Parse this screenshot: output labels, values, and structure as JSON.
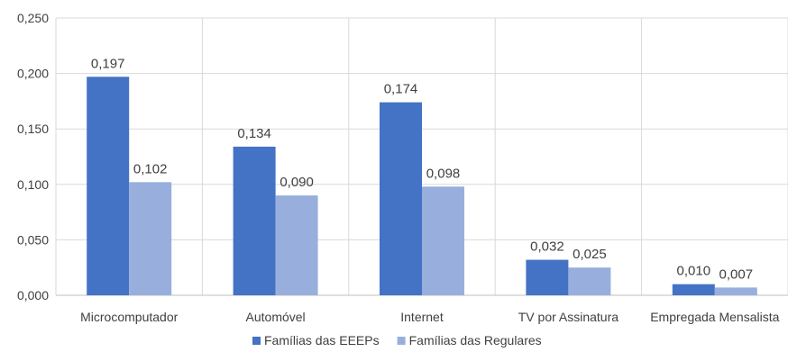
{
  "chart_data": {
    "type": "bar",
    "title": "",
    "xlabel": "",
    "ylabel": "",
    "categories": [
      "Microcomputador",
      "Automóvel",
      "Internet",
      "TV por Assinatura",
      "Empregada Mensalista"
    ],
    "series": [
      {
        "name": "Famílias das EEEPs",
        "values": [
          0.197,
          0.134,
          0.174,
          0.032,
          0.01
        ],
        "labels": [
          "0,197",
          "0,134",
          "0,174",
          "0,032",
          "0,010"
        ],
        "color": "#4472C4"
      },
      {
        "name": "Famílias das Regulares",
        "values": [
          0.102,
          0.09,
          0.098,
          0.025,
          0.007
        ],
        "labels": [
          "0,102",
          "0,090",
          "0,098",
          "0,025",
          "0,007"
        ],
        "color": "#98AFDD"
      }
    ],
    "ylim": [
      0,
      0.25
    ],
    "yticks": [
      0,
      0.05,
      0.1,
      0.15,
      0.2,
      0.25
    ],
    "ytick_labels": [
      "0,000",
      "0,050",
      "0,100",
      "0,150",
      "0,200",
      "0,250"
    ],
    "grid": true,
    "legend_position": "bottom"
  },
  "colors": {
    "grid": "#D9D9D9",
    "axis": "#BFBFBF",
    "text": "#404040"
  }
}
